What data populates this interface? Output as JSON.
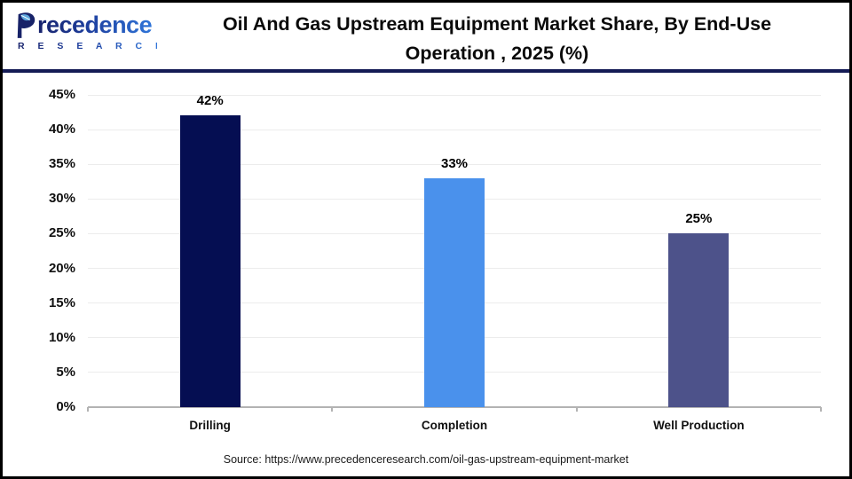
{
  "header": {
    "logo": {
      "brand_rest": "recedence",
      "subtitle": "R E S E A R C H"
    },
    "title_line1": "Oil And Gas Upstream Equipment Market Share, By End-Use",
    "title_line2": "Operation , 2025 (%)"
  },
  "chart_data": {
    "type": "bar",
    "title": "Oil And Gas Upstream Equipment Market Share, By End-Use Operation , 2025 (%)",
    "categories": [
      "Drilling",
      "Completion",
      "Well Production"
    ],
    "values": [
      42,
      33,
      25
    ],
    "value_labels": [
      "42%",
      "33%",
      "25%"
    ],
    "bar_colors": [
      "#050e52",
      "#4a91ec",
      "#4d528a"
    ],
    "xlabel": "",
    "ylabel": "",
    "ylim": [
      0,
      45
    ],
    "ytick_step": 5,
    "ytick_labels": [
      "0%",
      "5%",
      "10%",
      "15%",
      "20%",
      "25%",
      "30%",
      "35%",
      "40%",
      "45%"
    ],
    "grid": true,
    "legend": false
  },
  "footer": {
    "source": "Source: https://www.precedenceresearch.com/oil-gas-upstream-equipment-market"
  },
  "colors": {
    "separator": "#141b55",
    "grid": "#ececec",
    "axis": "#b3b3b3",
    "bar_navy": "#050e52",
    "bar_blue": "#4a91ec",
    "bar_slate": "#4d528a"
  }
}
